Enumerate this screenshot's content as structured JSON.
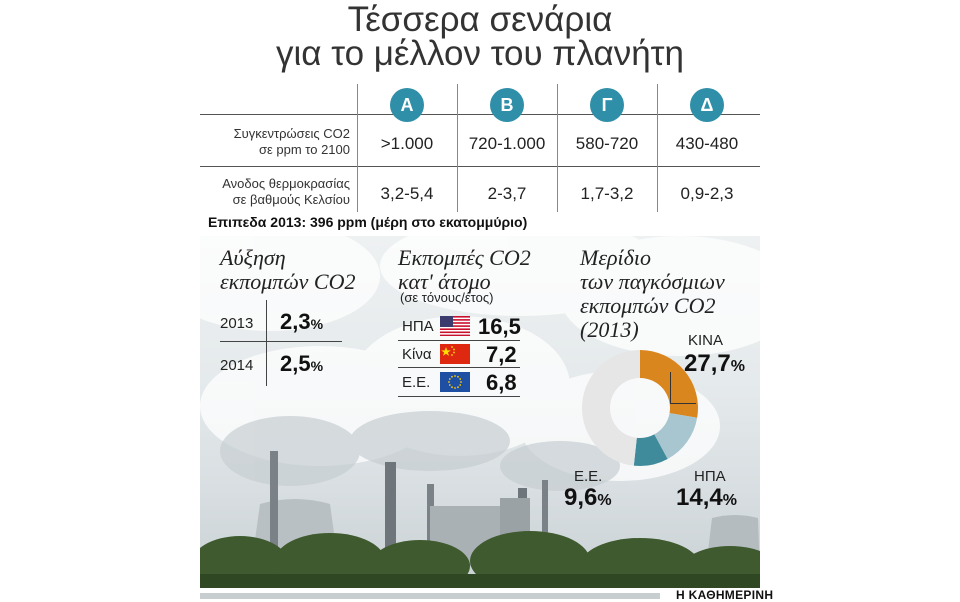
{
  "title_line1": "Τέσσερα σενάρια",
  "title_line2": "για το μέλλον του πλανήτη",
  "scenarios": {
    "headers": [
      "Α",
      "Β",
      "Γ",
      "Δ"
    ],
    "row1_label_a": "Συγκεντρώσεις CO2",
    "row1_label_b": "σε ppm το 2100",
    "row1_values": [
      ">1.000",
      "720-1.000",
      "580-720",
      "430-480"
    ],
    "row2_label_a": "Ανοδος θερμοκρασίας",
    "row2_label_b": "σε βαθμούς Κελσίου",
    "row2_values": [
      "3,2-5,4",
      "2-3,7",
      "1,7-3,2",
      "0,9-2,3"
    ]
  },
  "note": "Επιπεδα 2013: 396 ppm (μέρη στο εκατομμύριο)",
  "growth": {
    "heading_a": "Αύξηση",
    "heading_b": "εκπομπών CO2",
    "rows": [
      {
        "year": "2013",
        "value": "2,3",
        "unit": "%"
      },
      {
        "year": "2014",
        "value": "2,5",
        "unit": "%"
      }
    ]
  },
  "per_capita": {
    "heading_a": "Εκπομπές CO2",
    "heading_b": "κατ' άτομο",
    "subheading": "(σε τόνους/έτος)",
    "rows": [
      {
        "country": "ΗΠΑ",
        "value": "16,5",
        "flag": "usa-flag"
      },
      {
        "country": "Κίνα",
        "value": "7,2",
        "flag": "china-flag"
      },
      {
        "country": "Ε.Ε.",
        "value": "6,8",
        "flag": "eu-flag"
      }
    ]
  },
  "share": {
    "heading_a": "Μερίδιο",
    "heading_b": "των παγκόσμιων",
    "heading_c": "εκπομπών CO2",
    "heading_d": "(2013)",
    "china_label": "ΚΙΝΑ",
    "china_value": "27,7",
    "usa_label": "ΗΠΑ",
    "usa_value": "14,4",
    "eu_label": "Ε.Ε.",
    "eu_value": "9,6",
    "unit": "%"
  },
  "source": "Η ΚΑΘΗΜΕΡΙΝΗ",
  "colors": {
    "badge": "#2f8fa8",
    "china": "#d9861f",
    "usa": "#a8c6cf",
    "eu": "#3f8b9c",
    "rest": "#e6e6e6"
  },
  "chart_data": [
    {
      "type": "table",
      "columns": [
        "Α",
        "Β",
        "Γ",
        "Δ"
      ],
      "rows": [
        {
          "label": "Συγκεντρώσεις CO2 σε ppm το 2100",
          "values": [
            ">1.000",
            "720-1.000",
            "580-720",
            "430-480"
          ]
        },
        {
          "label": "Ανοδος θερμοκρασίας σε βαθμούς Κελσίου",
          "values": [
            "3,2-5,4",
            "2-3,7",
            "1,7-3,2",
            "0,9-2,3"
          ]
        }
      ]
    },
    {
      "type": "table",
      "title": "Αύξηση εκπομπών CO2",
      "categories": [
        "2013",
        "2014"
      ],
      "values": [
        2.3,
        2.5
      ]
    },
    {
      "type": "table",
      "title": "Εκπομπές CO2 κατ' άτομο",
      "subtitle": "(σε τόνους/έτος)",
      "categories": [
        "ΗΠΑ",
        "Κίνα",
        "Ε.Ε."
      ],
      "values": [
        16.5,
        7.2,
        6.8
      ]
    },
    {
      "type": "pie",
      "title": "Μερίδιο των παγκόσμιων εκπομπών CO2 (2013)",
      "categories": [
        "ΚΙΝΑ",
        "ΗΠΑ",
        "Ε.Ε."
      ],
      "values": [
        27.7,
        14.4,
        9.6
      ]
    }
  ]
}
